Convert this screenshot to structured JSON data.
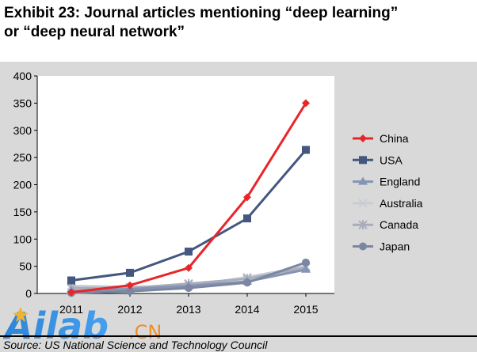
{
  "title_line1": "Exhibit 23: Journal articles mentioning “deep learning”",
  "title_line2": "or “deep neural network”",
  "source": "Source: US National Science and Technology Council",
  "watermark": "Ailab.CN",
  "colors": {
    "China": "#e8262a",
    "USA": "#44577f",
    "England": "#8694b4",
    "Australia": "#c9ccd6",
    "Canada": "#a8adba",
    "Japan": "#7b87a2"
  },
  "chart_data": {
    "type": "line",
    "x": [
      "2011",
      "2012",
      "2013",
      "2014",
      "2015"
    ],
    "ylim": [
      0,
      400
    ],
    "yticks": [
      0,
      50,
      100,
      150,
      200,
      250,
      300,
      350,
      400
    ],
    "grid": false,
    "legend_position": "right",
    "series": [
      {
        "name": "China",
        "marker": "diamond",
        "values": [
          2,
          15,
          47,
          177,
          350
        ]
      },
      {
        "name": "USA",
        "marker": "square",
        "values": [
          24,
          38,
          77,
          138,
          264
        ]
      },
      {
        "name": "England",
        "marker": "triangle",
        "values": [
          5,
          8,
          14,
          22,
          44
        ]
      },
      {
        "name": "Australia",
        "marker": "x",
        "values": [
          14,
          12,
          14,
          30,
          50
        ]
      },
      {
        "name": "Canada",
        "marker": "star",
        "values": [
          10,
          10,
          18,
          27,
          48
        ]
      },
      {
        "name": "Japan",
        "marker": "circle",
        "values": [
          1,
          4,
          10,
          20,
          57
        ]
      }
    ]
  }
}
